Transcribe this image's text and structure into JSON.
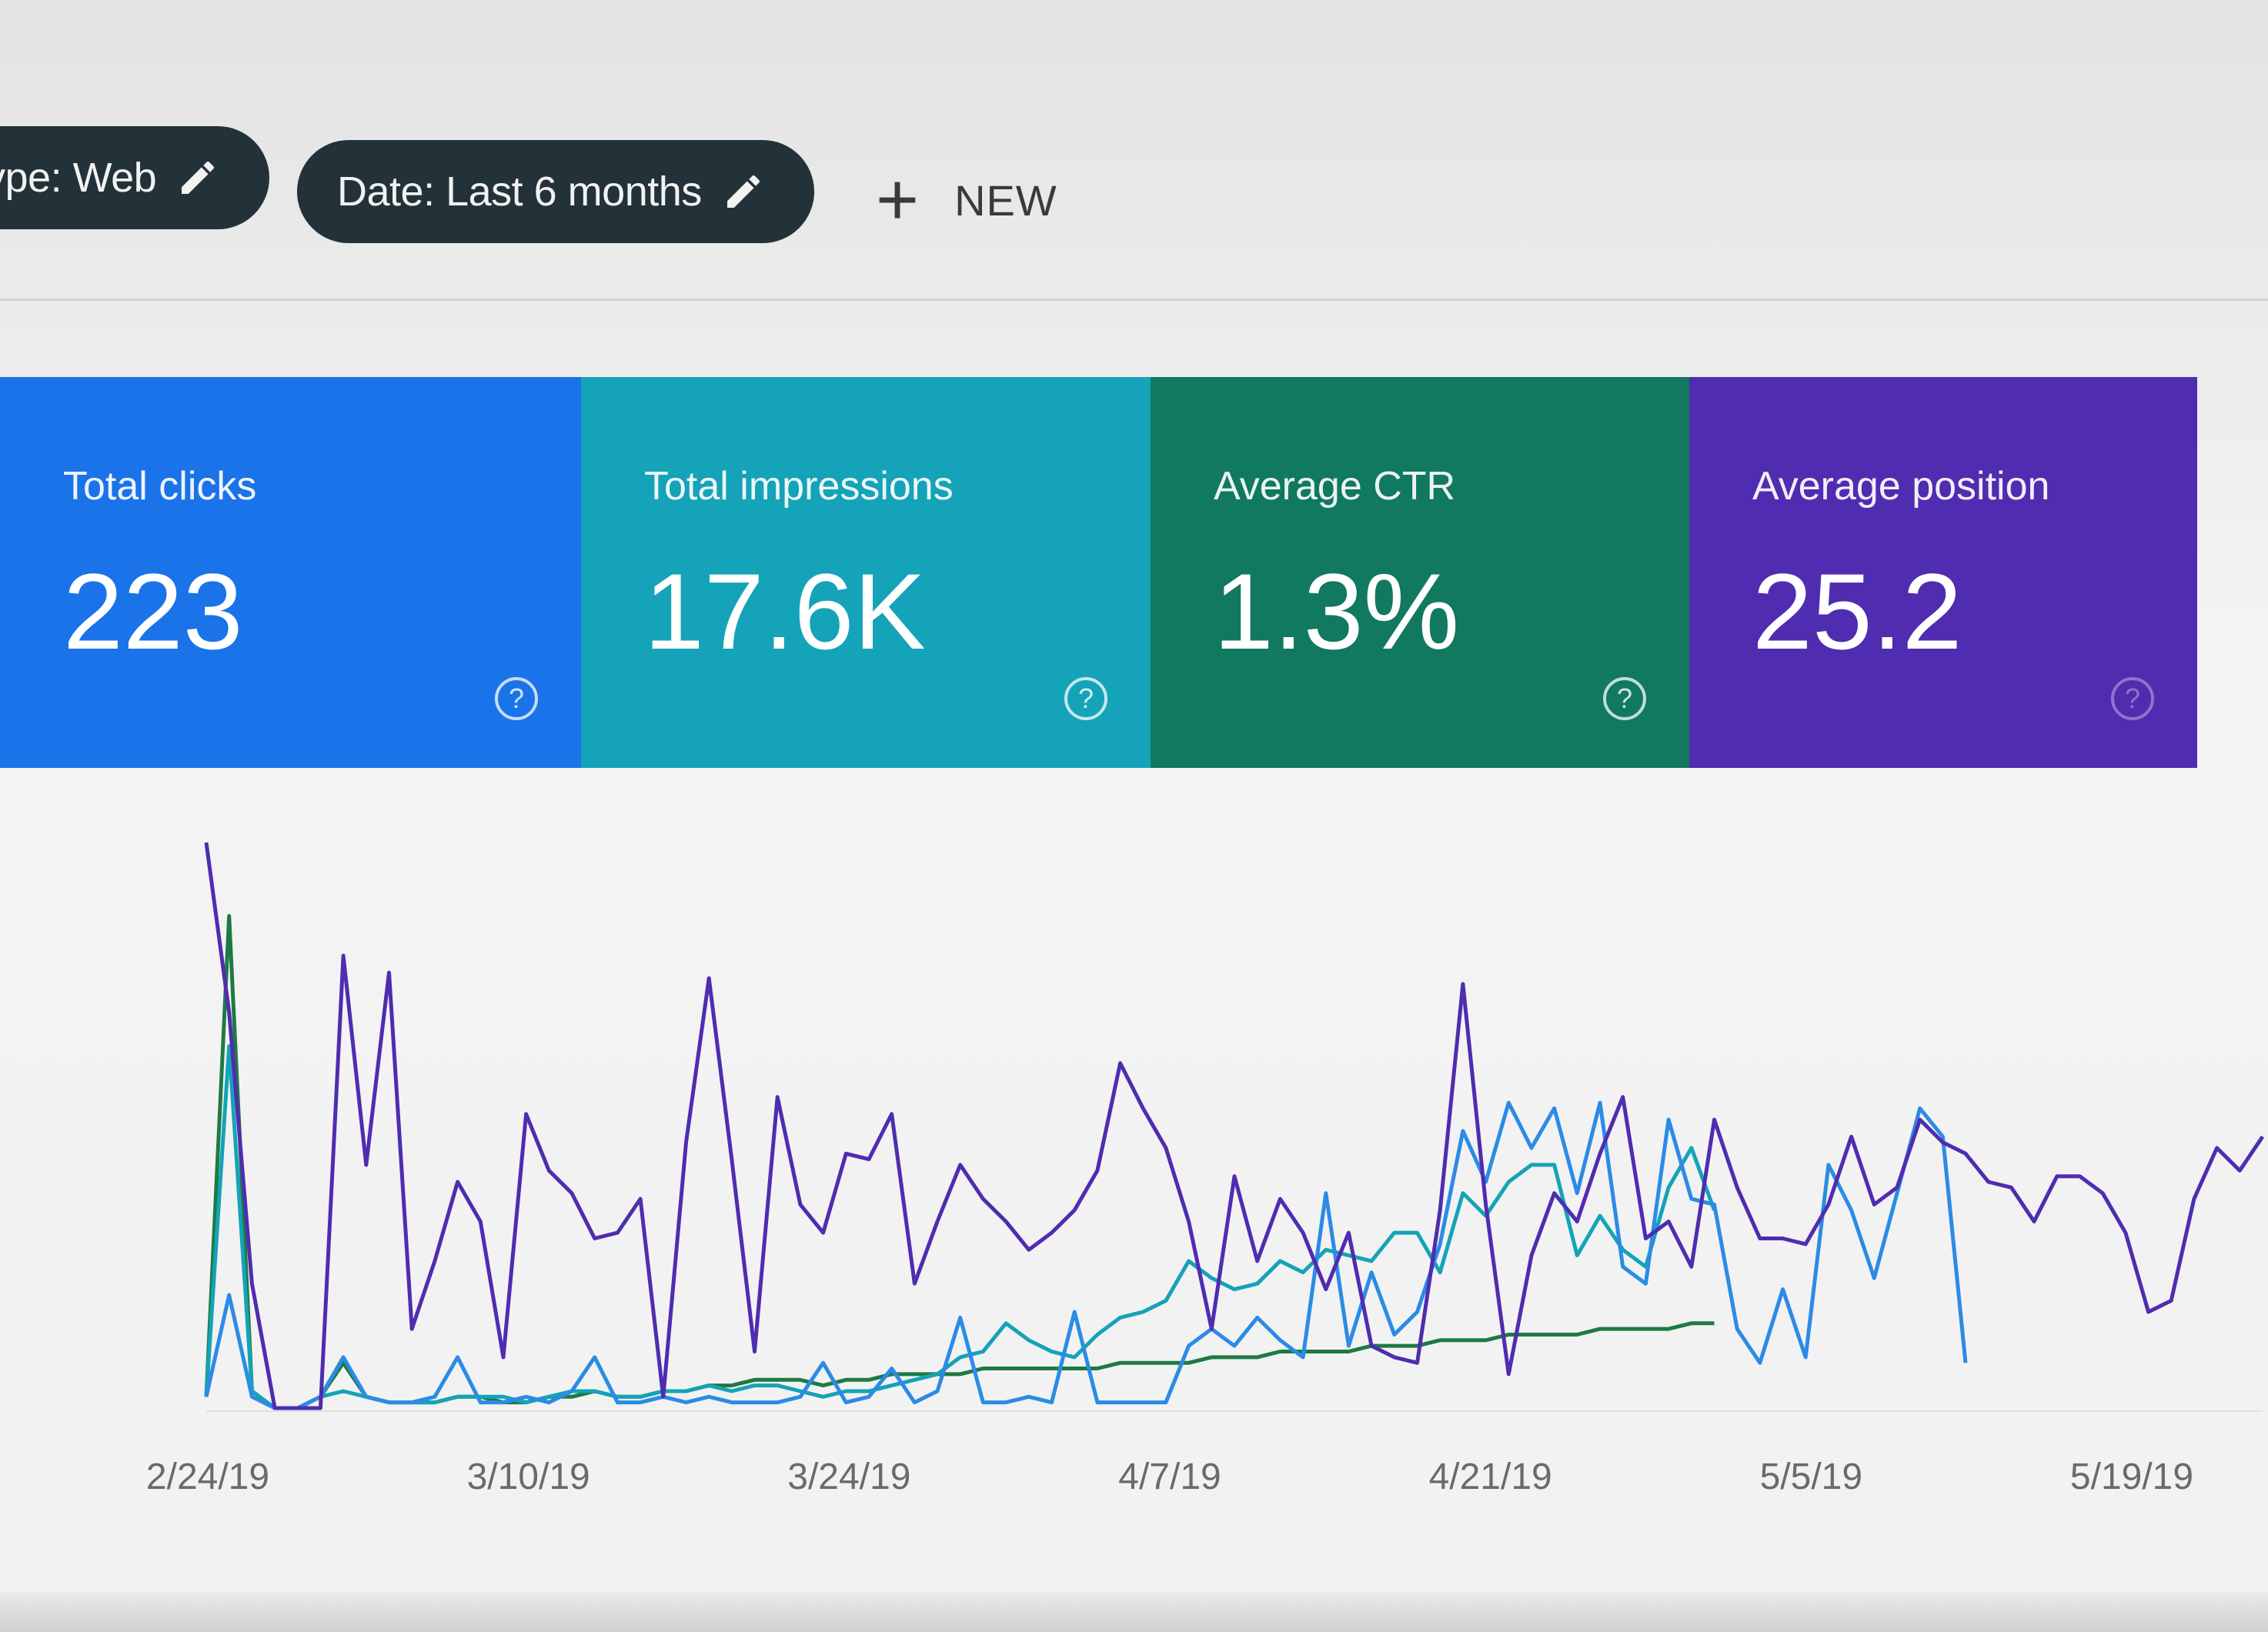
{
  "filters": {
    "type_chip": "ype: Web",
    "date_chip": "Date: Last 6 months",
    "new_label": "NEW"
  },
  "cards": {
    "clicks": {
      "title": "Total clicks",
      "value": "223",
      "color": "#1a73e8"
    },
    "impressions": {
      "title": "Total impressions",
      "value": "17.6K",
      "color": "#14a3b8"
    },
    "ctr": {
      "title": "Average CTR",
      "value": "1.3%",
      "color": "#10795f"
    },
    "position": {
      "title": "Average position",
      "value": "25.2",
      "color": "#4f2cb0"
    },
    "help_icon": "help-circle-icon"
  },
  "chart_data": {
    "type": "line",
    "x_tick_labels": [
      "2/24/19",
      "3/10/19",
      "3/24/19",
      "4/7/19",
      "4/21/19",
      "5/5/19",
      "5/19/19"
    ],
    "y_range": [
      0,
      100
    ],
    "grid": false,
    "series": [
      {
        "color": "#4f2cb0",
        "values": [
          100,
          70,
          22,
          0,
          0,
          0,
          80,
          43,
          77,
          14,
          26,
          40,
          33,
          9,
          52,
          42,
          38,
          30,
          31,
          37,
          2,
          47,
          76,
          44,
          10,
          55,
          36,
          31,
          45,
          44,
          52,
          22,
          33,
          43,
          37,
          33,
          28,
          31,
          35,
          42,
          61,
          53,
          46,
          33,
          14,
          41,
          26,
          37,
          31,
          21,
          31,
          11,
          9,
          8,
          35,
          75,
          36,
          6,
          27,
          38,
          33,
          45,
          55,
          30,
          33,
          25,
          51,
          39,
          30,
          30,
          29,
          36,
          48,
          36,
          39,
          51,
          47,
          45,
          40,
          39,
          33,
          41,
          41,
          38,
          31,
          17,
          19,
          37,
          46,
          42,
          48
        ]
      },
      {
        "color": "#2b8be6",
        "values": [
          2,
          20,
          2,
          0,
          0,
          2,
          9,
          2,
          1,
          1,
          2,
          9,
          1,
          1,
          2,
          1,
          3,
          9,
          1,
          1,
          2,
          1,
          2,
          1,
          1,
          1,
          2,
          8,
          1,
          2,
          7,
          1,
          3,
          16,
          1,
          1,
          2,
          1,
          17,
          1,
          1,
          1,
          1,
          11,
          14,
          11,
          16,
          12,
          9,
          38,
          11,
          24,
          13,
          17,
          29,
          49,
          40,
          54,
          46,
          53,
          38,
          54,
          25,
          22,
          51,
          37,
          36,
          14,
          8,
          21,
          9,
          43,
          35,
          23,
          38,
          53,
          48,
          8
        ]
      },
      {
        "color": "#14a3b8",
        "values": [
          2,
          64,
          3,
          0,
          0,
          2,
          3,
          2,
          1,
          1,
          1,
          2,
          2,
          2,
          1,
          2,
          3,
          3,
          2,
          2,
          3,
          3,
          4,
          3,
          4,
          4,
          3,
          2,
          3,
          3,
          4,
          5,
          6,
          9,
          10,
          15,
          12,
          10,
          9,
          13,
          16,
          17,
          19,
          26,
          23,
          21,
          22,
          26,
          24,
          28,
          27,
          26,
          31,
          31,
          24,
          38,
          34,
          40,
          43,
          43,
          27,
          34,
          28,
          25,
          39,
          46,
          35
        ]
      },
      {
        "color": "#1e7a44",
        "values": [
          2,
          87,
          3,
          0,
          0,
          2,
          8,
          2,
          1,
          1,
          1,
          2,
          2,
          1,
          1,
          2,
          2,
          3,
          2,
          2,
          3,
          3,
          4,
          4,
          5,
          5,
          5,
          4,
          5,
          5,
          6,
          6,
          6,
          6,
          7,
          7,
          7,
          7,
          7,
          7,
          8,
          8,
          8,
          8,
          9,
          9,
          9,
          10,
          10,
          10,
          10,
          11,
          11,
          11,
          12,
          12,
          12,
          13,
          13,
          13,
          13,
          14,
          14,
          14,
          14,
          15,
          15
        ]
      }
    ]
  }
}
